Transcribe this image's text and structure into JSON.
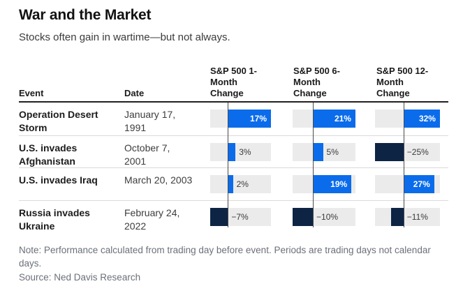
{
  "header": {
    "title": "War and the Market",
    "subtitle": "Stocks often gain in wartime—but not always."
  },
  "table_headers": {
    "event": "Event",
    "date": "Date"
  },
  "chart_data": {
    "type": "bar",
    "title": "War and the Market",
    "subtitle": "Stocks often gain in wartime—but not always.",
    "unit": "%",
    "orientation": "horizontal",
    "grid": "zero-line-per-column",
    "legend_position": "none",
    "value_columns": [
      "S&P 500 1-Month Change",
      "S&P 500 6-Month Change",
      "S&P 500 12-Month Change"
    ],
    "rows": [
      {
        "event": "Operation Desert Storm",
        "date": "January 17, 1991",
        "values": [
          17,
          21,
          32
        ],
        "labels": [
          "17%",
          "21%",
          "32%"
        ]
      },
      {
        "event": "U.S. invades Afghanistan",
        "date": "October 7, 2001",
        "values": [
          3,
          5,
          -25
        ],
        "labels": [
          "3%",
          "5%",
          "−25%"
        ]
      },
      {
        "event": "U.S. invades Iraq",
        "date": "March 20, 2003",
        "values": [
          2,
          19,
          27
        ],
        "labels": [
          "2%",
          "19%",
          "27%"
        ]
      },
      {
        "event": "Russia invades Ukraine",
        "date": "February 24, 2022",
        "values": [
          -7,
          -10,
          -11
        ],
        "labels": [
          "−7%",
          "−10%",
          "−11%"
        ]
      }
    ],
    "colors": {
      "positive": "#0b6ceb",
      "negative": "#0d2444",
      "track": "#ebebeb"
    }
  },
  "footer": {
    "note": "Note: Performance calculated from trading day before event. Periods are trading days not calendar days.",
    "source": "Source: Ned Davis Research"
  }
}
